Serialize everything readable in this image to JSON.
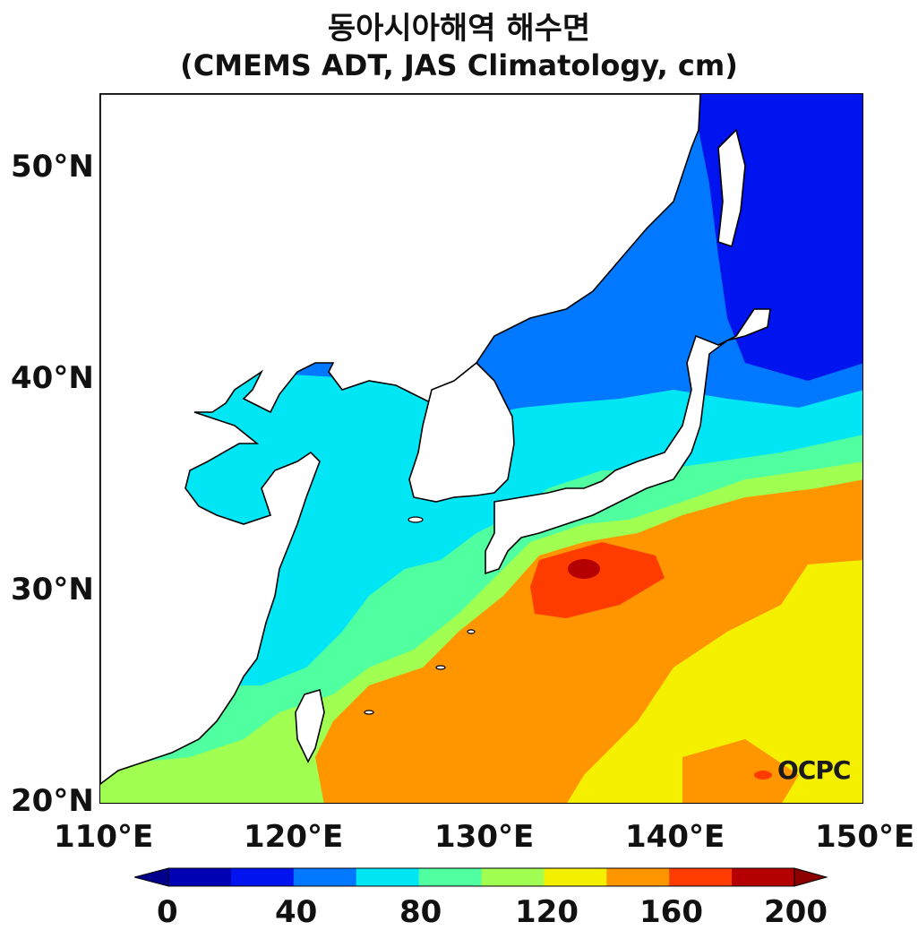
{
  "title": {
    "line1": "동아시아해역 해수면",
    "line2": "(CMEMS ADT, JAS Climatology, cm)"
  },
  "axes": {
    "lat_labels": [
      "50°N",
      "40°N",
      "30°N",
      "20°N"
    ],
    "lon_labels": [
      "110°E",
      "120°E",
      "130°E",
      "140°E",
      "150°E"
    ],
    "lat_range": [
      20,
      53.5
    ],
    "lon_range": [
      110,
      150
    ]
  },
  "colorbar": {
    "tick_labels": [
      "0",
      "40",
      "80",
      "120",
      "160",
      "200"
    ],
    "levels": [
      0,
      20,
      40,
      60,
      80,
      100,
      120,
      140,
      160,
      180,
      200
    ],
    "colors": [
      "#0000b4",
      "#0014f0",
      "#0078ff",
      "#00e6f5",
      "#50ffa0",
      "#a0ff50",
      "#f5f000",
      "#ff9600",
      "#ff3c00",
      "#b40000"
    ],
    "under_color": "#00008c",
    "over_color": "#8c0000"
  },
  "logo": "OCPC"
}
